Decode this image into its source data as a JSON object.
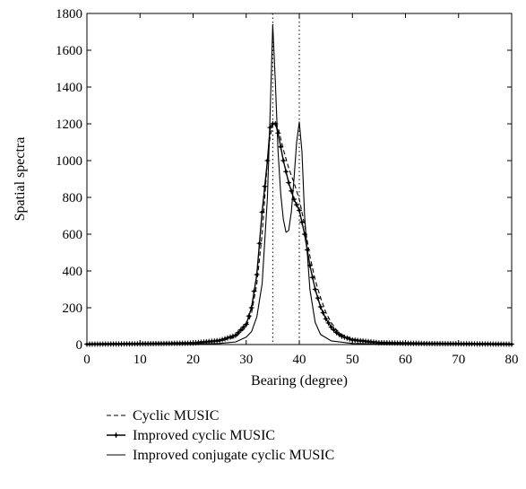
{
  "chart_data": {
    "type": "line",
    "title": "",
    "xlabel": "Bearing (degree)",
    "ylabel": "Spatial spectra",
    "xlim": [
      0,
      80
    ],
    "ylim": [
      0,
      1800
    ],
    "xticks": [
      0,
      10,
      20,
      30,
      40,
      50,
      60,
      70,
      80
    ],
    "yticks": [
      0,
      200,
      400,
      600,
      800,
      1000,
      1200,
      1400,
      1600,
      1800
    ],
    "grid": false,
    "legend_position": "bottom",
    "reference_lines": [
      35,
      40
    ],
    "series": [
      {
        "name": "Cyclic MUSIC",
        "style": "dashed",
        "color": "#000000",
        "x": [
          0,
          5,
          10,
          15,
          20,
          25,
          28,
          30,
          31,
          32,
          33,
          34,
          34.5,
          35,
          35.5,
          36,
          37,
          38,
          39,
          40,
          41,
          42,
          43,
          44,
          45,
          46,
          47,
          48,
          50,
          55,
          60,
          65,
          70,
          75,
          80
        ],
        "y": [
          2,
          3,
          4,
          6,
          8,
          18,
          40,
          95,
          170,
          330,
          600,
          1000,
          1130,
          1195,
          1210,
          1180,
          1060,
          960,
          880,
          790,
          650,
          480,
          350,
          255,
          175,
          120,
          80,
          55,
          30,
          12,
          8,
          5,
          4,
          3,
          2
        ]
      },
      {
        "name": "Improved cyclic MUSIC",
        "style": "solid-with-markers",
        "color": "#000000",
        "x": [
          0,
          5,
          10,
          15,
          20,
          25,
          28,
          30,
          31,
          32,
          33,
          34,
          34.5,
          35,
          35.5,
          36,
          37,
          38,
          39,
          40,
          41,
          42,
          43,
          44,
          45,
          46,
          47,
          48,
          50,
          55,
          60,
          65,
          70,
          75,
          80
        ],
        "y": [
          2,
          3,
          4,
          6,
          8,
          22,
          50,
          110,
          200,
          380,
          720,
          1000,
          1180,
          1200,
          1200,
          1150,
          1000,
          880,
          790,
          730,
          600,
          430,
          300,
          205,
          140,
          95,
          65,
          45,
          25,
          10,
          7,
          5,
          4,
          3,
          2
        ]
      },
      {
        "name": "Improved conjugate cyclic MUSIC",
        "style": "solid",
        "color": "#000000",
        "x": [
          0,
          5,
          10,
          15,
          20,
          25,
          28,
          30,
          31,
          32,
          33,
          34,
          34.5,
          35,
          35.5,
          36,
          36.5,
          37,
          37.5,
          38,
          38.5,
          39,
          39.5,
          40,
          40.5,
          41,
          42,
          43,
          44,
          46,
          50,
          55,
          60,
          65,
          70,
          75,
          80
        ],
        "y": [
          1,
          1,
          2,
          2,
          3,
          6,
          14,
          40,
          70,
          150,
          330,
          800,
          1250,
          1740,
          1420,
          1050,
          820,
          680,
          610,
          620,
          720,
          900,
          1100,
          1210,
          1050,
          700,
          300,
          120,
          55,
          20,
          6,
          3,
          2,
          2,
          1,
          1,
          1
        ]
      }
    ]
  }
}
